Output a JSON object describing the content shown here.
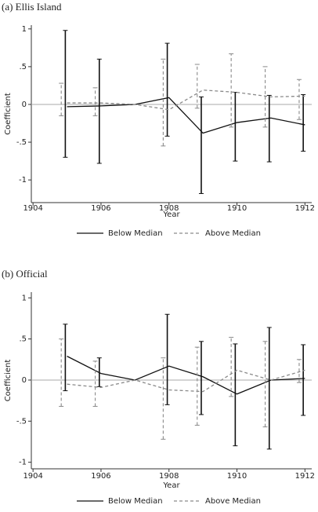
{
  "chart_data": [
    {
      "type": "line",
      "title": "(a) Ellis Island",
      "x_label": "Year",
      "y_label": "Coefficient",
      "x": [
        1905,
        1906,
        1907,
        1908,
        1909,
        1910,
        1911,
        1912
      ],
      "xlim": [
        1903.95,
        1912.2
      ],
      "xticks": [
        1904,
        1906,
        1908,
        1910,
        1912
      ],
      "ylim": [
        -1.3,
        1.05
      ],
      "yticks": [
        1,
        {
          "value": 0.5,
          "label": ".5"
        },
        0,
        {
          "value": -0.5,
          "label": "-.5"
        },
        -1
      ],
      "series": [
        {
          "name": "Below Median",
          "color": "#111111",
          "dash": false,
          "values": [
            -0.03,
            -0.02,
            0,
            0.09,
            -0.38,
            -0.24,
            -0.18,
            -0.27
          ],
          "error_low": [
            -0.7,
            -0.78,
            null,
            -0.42,
            -1.18,
            -0.75,
            -0.76,
            -0.62
          ],
          "error_high": [
            0.98,
            0.6,
            null,
            0.81,
            0.1,
            0.16,
            0.12,
            0.13
          ]
        },
        {
          "name": "Above Median",
          "color": "#8a8a8a",
          "dash": true,
          "values": [
            0.02,
            0.02,
            0,
            -0.07,
            0.19,
            0.16,
            0.1,
            0.11
          ],
          "error_low": [
            -0.15,
            -0.15,
            null,
            -0.55,
            -0.05,
            -0.3,
            -0.3,
            -0.2
          ],
          "error_high": [
            0.28,
            0.22,
            null,
            0.6,
            0.53,
            0.67,
            0.5,
            0.33
          ]
        }
      ]
    },
    {
      "type": "line",
      "title": "(b) Official",
      "x_label": "Year",
      "y_label": "Coefficient",
      "x": [
        1905,
        1906,
        1907,
        1908,
        1909,
        1910,
        1911,
        1912
      ],
      "xlim": [
        1903.95,
        1912.2
      ],
      "xticks": [
        1904,
        1906,
        1908,
        1910,
        1912
      ],
      "ylim": [
        -1.08,
        1.07
      ],
      "yticks": [
        1,
        {
          "value": 0.5,
          "label": ".5"
        },
        0,
        {
          "value": -0.5,
          "label": "-.5"
        },
        -1
      ],
      "series": [
        {
          "name": "Below Median",
          "color": "#111111",
          "dash": false,
          "values": [
            0.29,
            0.08,
            0,
            0.17,
            0.04,
            -0.17,
            0.0,
            0.02
          ],
          "error_low": [
            -0.13,
            -0.08,
            null,
            -0.3,
            -0.42,
            -0.8,
            -0.84,
            -0.43
          ],
          "error_high": [
            0.68,
            0.27,
            null,
            0.8,
            0.47,
            0.44,
            0.64,
            0.43
          ]
        },
        {
          "name": "Above Median",
          "color": "#8a8a8a",
          "dash": true,
          "values": [
            -0.05,
            -0.09,
            0,
            -0.12,
            -0.14,
            0.12,
            0.0,
            0.12
          ],
          "error_low": [
            -0.32,
            -0.32,
            null,
            -0.72,
            -0.55,
            -0.2,
            -0.57,
            -0.03
          ],
          "error_high": [
            0.5,
            0.23,
            null,
            0.27,
            0.4,
            0.52,
            0.47,
            0.25
          ]
        }
      ]
    }
  ]
}
